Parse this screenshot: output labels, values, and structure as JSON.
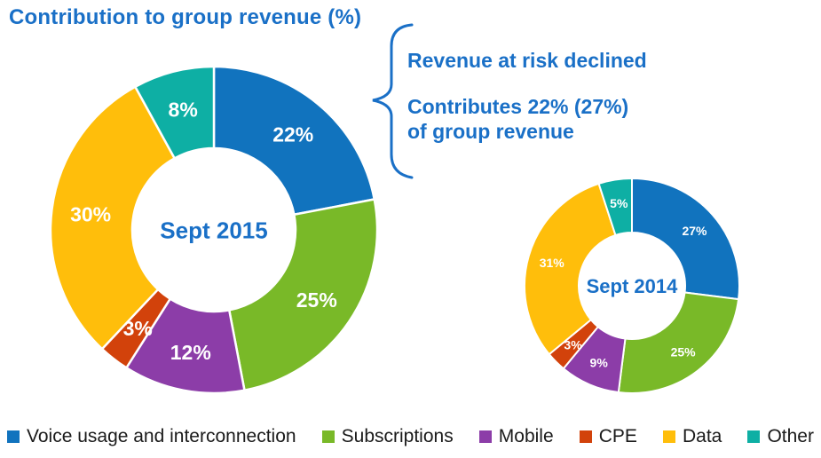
{
  "title": "Contribution to group revenue (%)",
  "annotation": {
    "line1": "Revenue at risk declined",
    "line2": "Contributes 22% (27%)",
    "line3": "of group revenue"
  },
  "colors": {
    "accent": "#1a70c7",
    "slice_label": "#ffffff",
    "slice_separator": "#ffffff",
    "legend_text": "#1a1a1a"
  },
  "chart_data": [
    {
      "type": "pie",
      "subtype": "donut",
      "center_label": "Sept 2015",
      "categories": [
        "Voice usage and interconnection",
        "Subscriptions",
        "Mobile",
        "CPE",
        "Data",
        "Other"
      ],
      "values": [
        22,
        25,
        12,
        3,
        30,
        8
      ],
      "labels": [
        "22%",
        "25%",
        "12%",
        "3%",
        "30%",
        "8%"
      ],
      "colors": [
        "#1173be",
        "#79b928",
        "#8c3da8",
        "#d2420b",
        "#ffbe0b",
        "#0eafa4"
      ],
      "start_angle_deg": 0,
      "direction": "clockwise",
      "legend_position": "bottom"
    },
    {
      "type": "pie",
      "subtype": "donut",
      "center_label": "Sept 2014",
      "categories": [
        "Voice usage and interconnection",
        "Subscriptions",
        "Mobile",
        "CPE",
        "Data",
        "Other"
      ],
      "values": [
        27,
        25,
        9,
        3,
        31,
        5
      ],
      "labels": [
        "27%",
        "25%",
        "9%",
        "3%",
        "31%",
        "5%"
      ],
      "colors": [
        "#1173be",
        "#79b928",
        "#8c3da8",
        "#d2420b",
        "#ffbe0b",
        "#0eafa4"
      ],
      "start_angle_deg": 0,
      "direction": "clockwise",
      "legend_position": "bottom"
    }
  ],
  "legend": {
    "items": [
      {
        "label": "Voice usage and interconnection",
        "color": "#1173be"
      },
      {
        "label": "Subscriptions",
        "color": "#79b928"
      },
      {
        "label": "Mobile",
        "color": "#8c3da8"
      },
      {
        "label": "CPE",
        "color": "#d2420b"
      },
      {
        "label": "Data",
        "color": "#ffbe0b"
      },
      {
        "label": "Other",
        "color": "#0eafa4"
      }
    ]
  }
}
